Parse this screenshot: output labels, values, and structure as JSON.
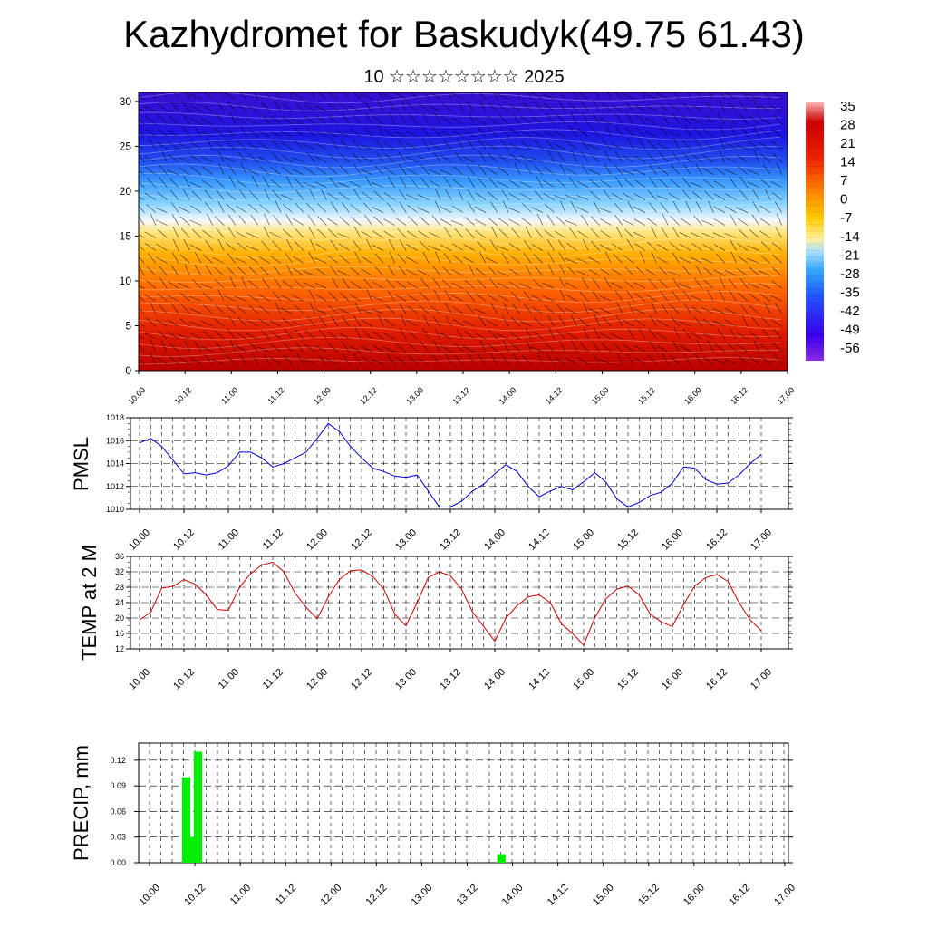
{
  "header": {
    "title": "Kazhydromet for Baskudyk(49.75 61.43)",
    "subtitle": "10 ☆☆☆☆☆☆☆☆ 2025"
  },
  "time_labels": [
    "10.00",
    "10.12",
    "11.00",
    "11.12",
    "12.00",
    "12.12",
    "13.00",
    "13.12",
    "14.00",
    "14.12",
    "15.00",
    "15.12",
    "16.00",
    "16.12",
    "17.00"
  ],
  "chart_data": [
    {
      "type": "heatmap",
      "name": "vertical-temperature-cross-section",
      "y_ticks": [
        0,
        5,
        10,
        15,
        20,
        25,
        30
      ],
      "ylim": [
        0,
        31
      ],
      "colorbar_labels": [
        35,
        28,
        21,
        14,
        7,
        0,
        -7,
        -14,
        -21,
        -28,
        -35,
        -42,
        -49,
        -56
      ],
      "colors": {
        "hot": "#cc0000",
        "warm": "#ff9900",
        "mild": "#ffee66",
        "cold": "#55ccff",
        "colder": "#3366ff",
        "coldest": "#3300dd"
      }
    },
    {
      "type": "line",
      "ylabel": "PMSL",
      "ylim": [
        1010,
        1018
      ],
      "y_ticks": [
        1010,
        1012,
        1014,
        1016,
        1018
      ],
      "color": "#0000cc",
      "values": [
        1015.8,
        1016.2,
        1015.5,
        1014.3,
        1013.1,
        1013.2,
        1013.0,
        1013.2,
        1013.8,
        1015.0,
        1015.0,
        1014.5,
        1013.7,
        1014.0,
        1014.5,
        1015.0,
        1016.2,
        1017.5,
        1016.8,
        1015.5,
        1014.5,
        1013.6,
        1013.3,
        1012.9,
        1012.8,
        1013.0,
        1011.6,
        1010.2,
        1010.2,
        1010.7,
        1011.6,
        1012.2,
        1013.1,
        1013.9,
        1013.3,
        1012.0,
        1011.1,
        1011.6,
        1012.0,
        1011.7,
        1012.4,
        1013.2,
        1012.4,
        1010.9,
        1010.2,
        1010.6,
        1011.2,
        1011.5,
        1012.3,
        1013.7,
        1013.6,
        1012.6,
        1012.2,
        1012.3,
        1013.0,
        1014.0,
        1014.8
      ]
    },
    {
      "type": "line",
      "ylabel": "TEMP at 2 M",
      "ylim": [
        12,
        36
      ],
      "y_ticks": [
        12,
        16,
        20,
        24,
        28,
        32,
        36
      ],
      "color": "#cc0000",
      "values": [
        19.5,
        21.5,
        27.8,
        28.2,
        30.0,
        28.8,
        26.0,
        22.2,
        22.0,
        28.0,
        31.5,
        33.8,
        34.5,
        32.0,
        26.5,
        22.8,
        19.8,
        25.5,
        30.0,
        32.3,
        32.5,
        30.8,
        27.5,
        21.0,
        18.0,
        24.0,
        30.5,
        32.0,
        31.0,
        27.5,
        21.5,
        17.8,
        14.0,
        20.0,
        23.2,
        25.5,
        26.0,
        24.0,
        18.5,
        16.0,
        13.0,
        20.0,
        25.0,
        27.5,
        28.3,
        26.0,
        21.0,
        19.0,
        17.8,
        23.5,
        28.3,
        30.5,
        31.3,
        29.5,
        24.0,
        19.5,
        16.7
      ]
    },
    {
      "type": "bar",
      "ylabel": "PRECIP, mm",
      "ylim": [
        0,
        0.14
      ],
      "y_ticks": [
        "0.00",
        "0.03",
        "0.06",
        "0.09",
        "0.12"
      ],
      "color": "#00ee00",
      "values": [
        0,
        0,
        0,
        0.1,
        0.03,
        0.03,
        0.13,
        0,
        0,
        0,
        0,
        0,
        0,
        0,
        0,
        0,
        0,
        0,
        0,
        0,
        0,
        0,
        0,
        0,
        0,
        0,
        0,
        0,
        0,
        0,
        0,
        0,
        0,
        0,
        0,
        0,
        0,
        0,
        0,
        0,
        0,
        0,
        0,
        0,
        0,
        0,
        0,
        0,
        0,
        0,
        0,
        0,
        0,
        0,
        0,
        0,
        0,
        0,
        0,
        0,
        0,
        0,
        0,
        0,
        0,
        0,
        0,
        0,
        0,
        0,
        0,
        0,
        0,
        0,
        0,
        0,
        0,
        0,
        0,
        0,
        0,
        0,
        0,
        0,
        0.01,
        0,
        0,
        0,
        0,
        0,
        0,
        0,
        0,
        0,
        0,
        0,
        0,
        0,
        0,
        0,
        0,
        0,
        0,
        0,
        0,
        0,
        0,
        0,
        0,
        0,
        0,
        0,
        0,
        0,
        0,
        0,
        0,
        0,
        0,
        0,
        0,
        0,
        0,
        0,
        0,
        0,
        0,
        0,
        0,
        0,
        0,
        0,
        0,
        0,
        0,
        0,
        0,
        0,
        0,
        0,
        0,
        0,
        0,
        0,
        0,
        0,
        0,
        0,
        0,
        0,
        0,
        0,
        0,
        0,
        0,
        0,
        0,
        0,
        0,
        0,
        0,
        0,
        0,
        0
      ]
    }
  ]
}
